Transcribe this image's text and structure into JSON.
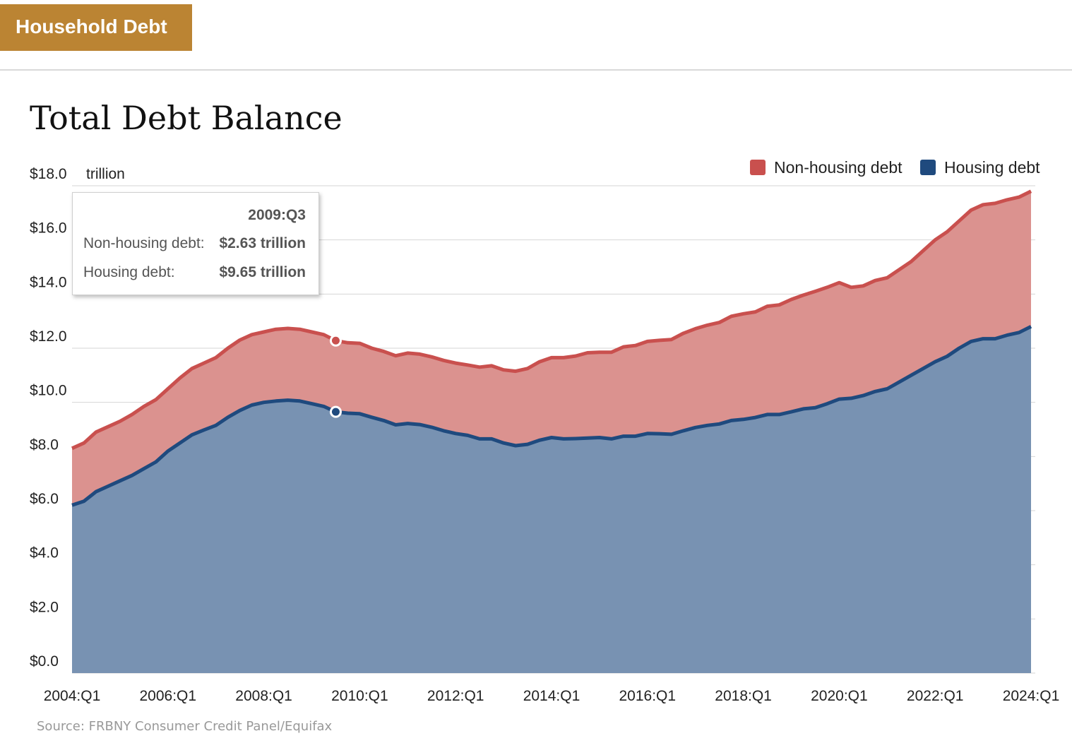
{
  "header": {
    "tag_label": "Household Debt"
  },
  "page_title": "Total Debt Balance",
  "source": "Source: FRBNY Consumer Credit Panel/Equifax",
  "tooltip": {
    "period": "2009:Q3",
    "rows": [
      {
        "label": "Non-housing debt:",
        "value": "$2.63 trillion"
      },
      {
        "label": "Housing debt:",
        "value": "$9.65 trillion"
      }
    ]
  },
  "colors": {
    "housing_line": "#1f4a7e",
    "housing_fill": "#7892b2",
    "nonhousing_line": "#c9504e",
    "nonhousing_fill": "#db928f",
    "header_tag": "#bb8433"
  },
  "chart_data": {
    "type": "area",
    "stacked": true,
    "title": "Total Debt Balance",
    "ylabel": "trillion",
    "ylim": [
      0,
      18
    ],
    "yticks": [
      "$0.0",
      "$2.0",
      "$4.0",
      "$6.0",
      "$8.0",
      "$10.0",
      "$12.0",
      "$14.0",
      "$16.0",
      "$18.0"
    ],
    "xticks": [
      "2004:Q1",
      "2006:Q1",
      "2008:Q1",
      "2010:Q1",
      "2012:Q1",
      "2014:Q1",
      "2016:Q1",
      "2018:Q1",
      "2020:Q1",
      "2022:Q1",
      "2024:Q1"
    ],
    "legend_position": "top-right",
    "series": [
      {
        "name": "Housing debt",
        "key": "housing",
        "values": [
          6.2,
          6.35,
          6.7,
          6.9,
          7.1,
          7.3,
          7.55,
          7.8,
          8.2,
          8.5,
          8.8,
          8.98,
          9.15,
          9.45,
          9.7,
          9.9,
          10.0,
          10.05,
          10.08,
          10.05,
          9.95,
          9.85,
          9.65,
          9.6,
          9.58,
          9.45,
          9.33,
          9.17,
          9.22,
          9.18,
          9.08,
          8.95,
          8.85,
          8.78,
          8.65,
          8.65,
          8.5,
          8.4,
          8.45,
          8.6,
          8.7,
          8.65,
          8.66,
          8.68,
          8.7,
          8.65,
          8.75,
          8.75,
          8.85,
          8.84,
          8.82,
          8.95,
          9.07,
          9.15,
          9.2,
          9.33,
          9.37,
          9.44,
          9.55,
          9.55,
          9.65,
          9.76,
          9.8,
          9.95,
          10.12,
          10.15,
          10.25,
          10.4,
          10.5,
          10.75,
          11.0,
          11.25,
          11.5,
          11.7,
          12.0,
          12.25,
          12.35,
          12.35,
          12.48,
          12.58,
          12.8
        ]
      },
      {
        "name": "Non-housing debt",
        "key": "nonhousing",
        "values": [
          2.1,
          2.15,
          2.2,
          2.2,
          2.2,
          2.25,
          2.3,
          2.3,
          2.3,
          2.4,
          2.45,
          2.47,
          2.5,
          2.55,
          2.6,
          2.6,
          2.6,
          2.65,
          2.65,
          2.65,
          2.65,
          2.65,
          2.63,
          2.6,
          2.6,
          2.55,
          2.55,
          2.55,
          2.6,
          2.6,
          2.6,
          2.6,
          2.6,
          2.6,
          2.65,
          2.7,
          2.7,
          2.75,
          2.8,
          2.9,
          2.95,
          3.0,
          3.05,
          3.15,
          3.15,
          3.2,
          3.3,
          3.35,
          3.4,
          3.45,
          3.5,
          3.6,
          3.65,
          3.7,
          3.75,
          3.85,
          3.9,
          3.9,
          4.0,
          4.05,
          4.15,
          4.2,
          4.3,
          4.3,
          4.3,
          4.1,
          4.05,
          4.1,
          4.1,
          4.15,
          4.2,
          4.35,
          4.5,
          4.6,
          4.7,
          4.85,
          4.95,
          5.0,
          5.0,
          5.0,
          5.0
        ]
      }
    ]
  },
  "legend": [
    {
      "label": "Non-housing debt",
      "key": "nonhousing"
    },
    {
      "label": "Housing debt",
      "key": "housing"
    }
  ]
}
